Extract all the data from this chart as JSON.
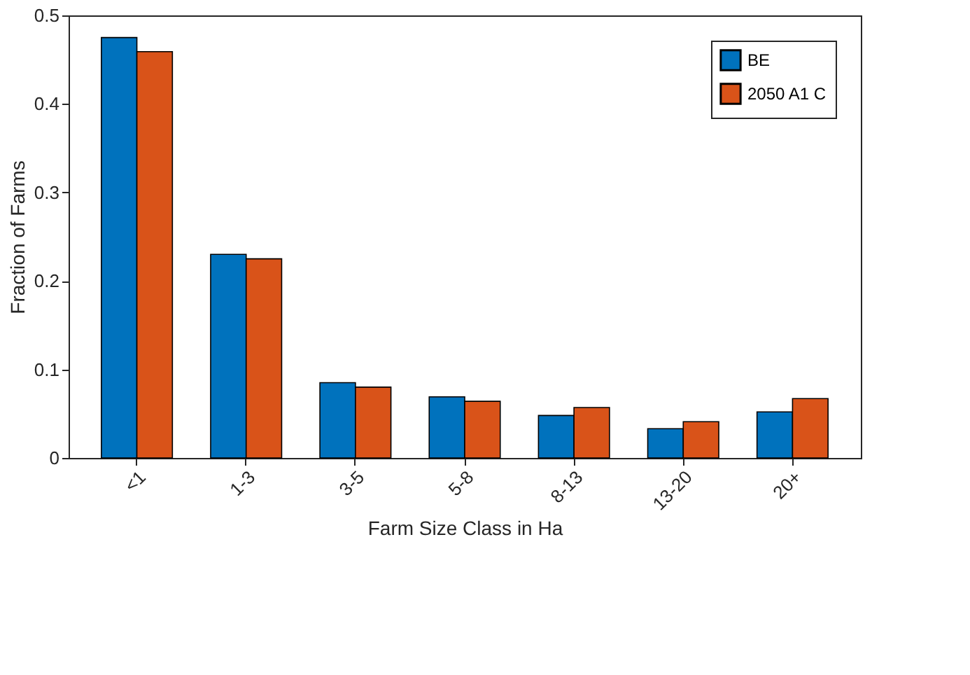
{
  "chart_data": {
    "type": "bar",
    "xlabel": "Farm Size Class in Ha",
    "ylabel": "Fraction of Farms",
    "categories": [
      "<1",
      "1-3",
      "3-5",
      "5-8",
      "8-13",
      "13-20",
      "20+"
    ],
    "series": [
      {
        "name": "BE",
        "color": "#0072bd",
        "values": [
          0.475,
          0.23,
          0.085,
          0.069,
          0.048,
          0.033,
          0.052
        ]
      },
      {
        "name": "2050 A1 C",
        "color": "#d95319",
        "values": [
          0.459,
          0.225,
          0.08,
          0.064,
          0.057,
          0.041,
          0.067
        ]
      }
    ],
    "ylim": [
      0,
      0.5
    ],
    "yticks": [
      0,
      0.1,
      0.2,
      0.3,
      0.4,
      0.5
    ],
    "grid": false,
    "legend": "top right"
  }
}
